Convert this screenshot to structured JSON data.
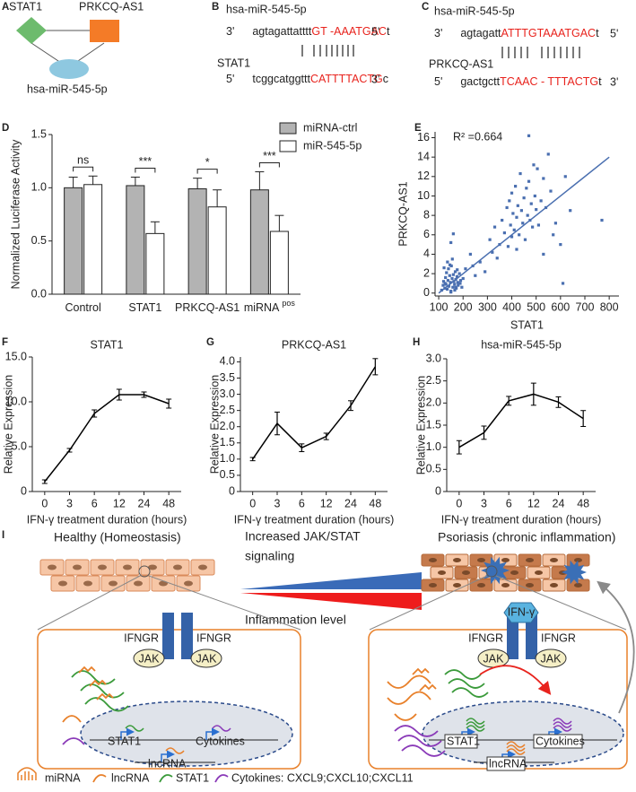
{
  "panel_A": {
    "label": "A",
    "nodes": [
      "STAT1",
      "PRKCQ-AS1",
      "hsa-miR-545-5p"
    ]
  },
  "panel_B": {
    "label": "B",
    "mirna": "hsa-miR-545-5p",
    "target": "STAT1",
    "mirna_row": [
      "3'",
      "agtagattatttt",
      "GT -AAATGAC",
      "t",
      "5'"
    ],
    "target_row": [
      "5'",
      "tcggcatggttt",
      "CATTTTACTG",
      "c",
      "3'"
    ]
  },
  "panel_C": {
    "label": "C",
    "mirna": "hsa-miR-545-5p",
    "target": "PRKCQ-AS1",
    "mirna_row": [
      "3'",
      "agtagatt",
      "ATTTGTAAATGAC",
      "t",
      "5'"
    ],
    "target_row": [
      "5'",
      "gactgctt",
      "TCAAC - TTTACTG",
      "t",
      "3'"
    ]
  },
  "panel_I": {
    "label": "I",
    "healthy_title": "Healthy (Homeostasis)",
    "gradient_top": [
      "Increased JAK/STAT",
      "signaling"
    ],
    "gradient_bottom": "Inflammation level",
    "psoriasis_title": "Psoriasis (chronic inflammation)",
    "receptor": "IFNGR",
    "kinase": "JAK",
    "ligand": "IFN-γ",
    "genes": [
      "STAT1",
      "Cytokines",
      "lncRNA"
    ],
    "legend": [
      "miRNA",
      "lncRNA",
      "STAT1",
      "Cytokines: CXCL9;CXCL10;CXCL11"
    ]
  },
  "chart_data": [
    {
      "type": "bar",
      "panel_label": "D",
      "ylabel": "Normalized Luciferase Activity",
      "categories": [
        "Control",
        "STAT1",
        "PRKCQ-AS1",
        "miRNA"
      ],
      "category_superscripts": [
        null,
        null,
        null,
        "pos"
      ],
      "series": [
        {
          "name": "miRNA-ctrl",
          "color": "#b3b3b3",
          "values": [
            1.0,
            1.02,
            0.99,
            0.98
          ],
          "errors": [
            0.1,
            0.08,
            0.1,
            0.17
          ]
        },
        {
          "name": "miR-545-5p",
          "color": "#ffffff",
          "values": [
            1.03,
            0.57,
            0.82,
            0.59
          ],
          "errors": [
            0.08,
            0.11,
            0.16,
            0.15
          ]
        }
      ],
      "significance": [
        "ns",
        "***",
        "*",
        "***"
      ],
      "ylim": [
        0,
        1.5
      ],
      "yticks": [
        {
          "value": 0,
          "label": "0.0"
        },
        {
          "value": 0.5,
          "label": "0.5"
        },
        {
          "value": 1,
          "label": "1.0"
        },
        {
          "value": 1.5,
          "label": "1.5"
        }
      ],
      "legend": "top-right"
    },
    {
      "type": "scatter",
      "panel_label": "E",
      "xlabel": "STAT1",
      "ylabel": "PRKCQ-AS1",
      "annotation": "R² =0.664",
      "color": "#4a6fb0",
      "x": [
        112,
        118,
        120,
        125,
        128,
        130,
        132,
        135,
        138,
        140,
        142,
        145,
        148,
        150,
        152,
        155,
        158,
        160,
        162,
        165,
        168,
        170,
        172,
        175,
        178,
        180,
        185,
        190,
        195,
        200,
        122,
        136,
        146,
        156,
        166,
        176,
        126,
        150,
        170,
        188,
        210,
        230,
        250,
        270,
        290,
        240,
        150,
        160,
        310,
        320,
        330,
        340,
        350,
        360,
        370,
        380,
        385,
        390,
        395,
        400,
        400,
        405,
        410,
        415,
        420,
        420,
        425,
        430,
        435,
        440,
        445,
        450,
        455,
        460,
        465,
        470,
        470,
        475,
        480,
        485,
        490,
        495,
        500,
        505,
        510,
        520,
        530,
        540,
        550,
        560,
        570,
        580,
        600,
        610,
        620,
        640,
        770,
        530
      ],
      "y": [
        0.3,
        0.8,
        1.2,
        0.5,
        1.6,
        0.9,
        2.1,
        0.4,
        1.3,
        2.5,
        0.7,
        1.8,
        1.1,
        0.2,
        2.8,
        1.5,
        0.6,
        1.9,
        1.2,
        0.9,
        2.2,
        1.4,
        0.5,
        1.7,
        1.1,
        0.8,
        2.0,
        1.3,
        0.6,
        1.5,
        2.6,
        3.2,
        2.9,
        3.5,
        0.3,
        2.4,
        1.0,
        0.1,
        0.6,
        1.0,
        2.5,
        4.0,
        1.8,
        3.2,
        2.2,
        2.8,
        5.2,
        6.1,
        5.5,
        4.2,
        6.8,
        3.6,
        5.0,
        7.5,
        6.2,
        8.8,
        4.8,
        9.5,
        7.0,
        5.8,
        10.3,
        8.2,
        6.5,
        11.0,
        7.8,
        4.5,
        9.0,
        6.0,
        12.3,
        8.5,
        7.2,
        9.8,
        5.5,
        10.8,
        8.0,
        11.5,
        16.2,
        7.5,
        9.2,
        6.8,
        13.2,
        10.0,
        8.6,
        12.8,
        7.0,
        9.5,
        11.8,
        8.8,
        14.3,
        10.5,
        6.0,
        7.2,
        5.0,
        1.0,
        12.0,
        8.5,
        7.5,
        4.0
      ],
      "trend_line": {
        "x": [
          100,
          800
        ],
        "y": [
          0,
          14
        ]
      },
      "xlim": [
        85,
        840
      ],
      "ylim": [
        -0.3,
        16.6
      ],
      "xticks": [
        100,
        200,
        300,
        400,
        500,
        600,
        700,
        800
      ],
      "yticks": [
        0,
        2,
        4,
        6,
        8,
        10,
        12,
        14,
        16
      ]
    },
    {
      "type": "line",
      "panel_label": "F",
      "title": "STAT1",
      "ylabel": "Relative Expression",
      "xlabel": "IFN-γ treatment duration (hours)",
      "categories": [
        "0",
        "3",
        "6",
        "12",
        "24",
        "48"
      ],
      "values": [
        1.1,
        4.6,
        8.7,
        10.8,
        10.8,
        9.8
      ],
      "errors": [
        0.2,
        0.2,
        0.4,
        0.6,
        0.3,
        0.5
      ],
      "color": "#000000",
      "ylim": [
        0,
        15
      ],
      "yticks": [
        0,
        {
          "value": 5,
          "label": "5.0"
        },
        {
          "value": 10,
          "label": "10.0"
        },
        {
          "value": 15,
          "label": "15.0"
        }
      ]
    },
    {
      "type": "line",
      "panel_label": "G",
      "title": "PRKCQ-AS1",
      "ylabel": "Relative Expression",
      "xlabel": "IFN-γ treatment duration (hours)",
      "categories": [
        "0",
        "3",
        "6",
        "12",
        "24",
        "48"
      ],
      "values": [
        1.0,
        2.1,
        1.35,
        1.7,
        2.65,
        3.85
      ],
      "errors": [
        0.05,
        0.35,
        0.12,
        0.1,
        0.15,
        0.25
      ],
      "color": "#000000",
      "ylim": [
        0,
        4.15
      ],
      "yticks": [
        0,
        0.5,
        {
          "value": 1,
          "label": "1.0"
        },
        1.5,
        {
          "value": 2,
          "label": "2.0"
        },
        2.5,
        {
          "value": 3,
          "label": "3.0"
        },
        3.5,
        {
          "value": 4,
          "label": "4.0"
        }
      ]
    },
    {
      "type": "line",
      "panel_label": "H",
      "title": "hsa-miR-545-5p",
      "ylabel": "Relative Expression",
      "xlabel": "IFN-γ treatment duration (hours)",
      "categories": [
        "0",
        "3",
        "6",
        "12",
        "24",
        "48"
      ],
      "values": [
        1.0,
        1.33,
        2.05,
        2.2,
        2.02,
        1.65
      ],
      "errors": [
        0.15,
        0.15,
        0.1,
        0.25,
        0.12,
        0.18
      ],
      "color": "#000000",
      "ylim": [
        0,
        3.0
      ],
      "yticks": [
        0,
        0.5,
        {
          "value": 1,
          "label": "1.0"
        },
        1.5,
        {
          "value": 2,
          "label": "2.0"
        },
        2.5,
        {
          "value": 3,
          "label": "3.0"
        }
      ]
    }
  ]
}
